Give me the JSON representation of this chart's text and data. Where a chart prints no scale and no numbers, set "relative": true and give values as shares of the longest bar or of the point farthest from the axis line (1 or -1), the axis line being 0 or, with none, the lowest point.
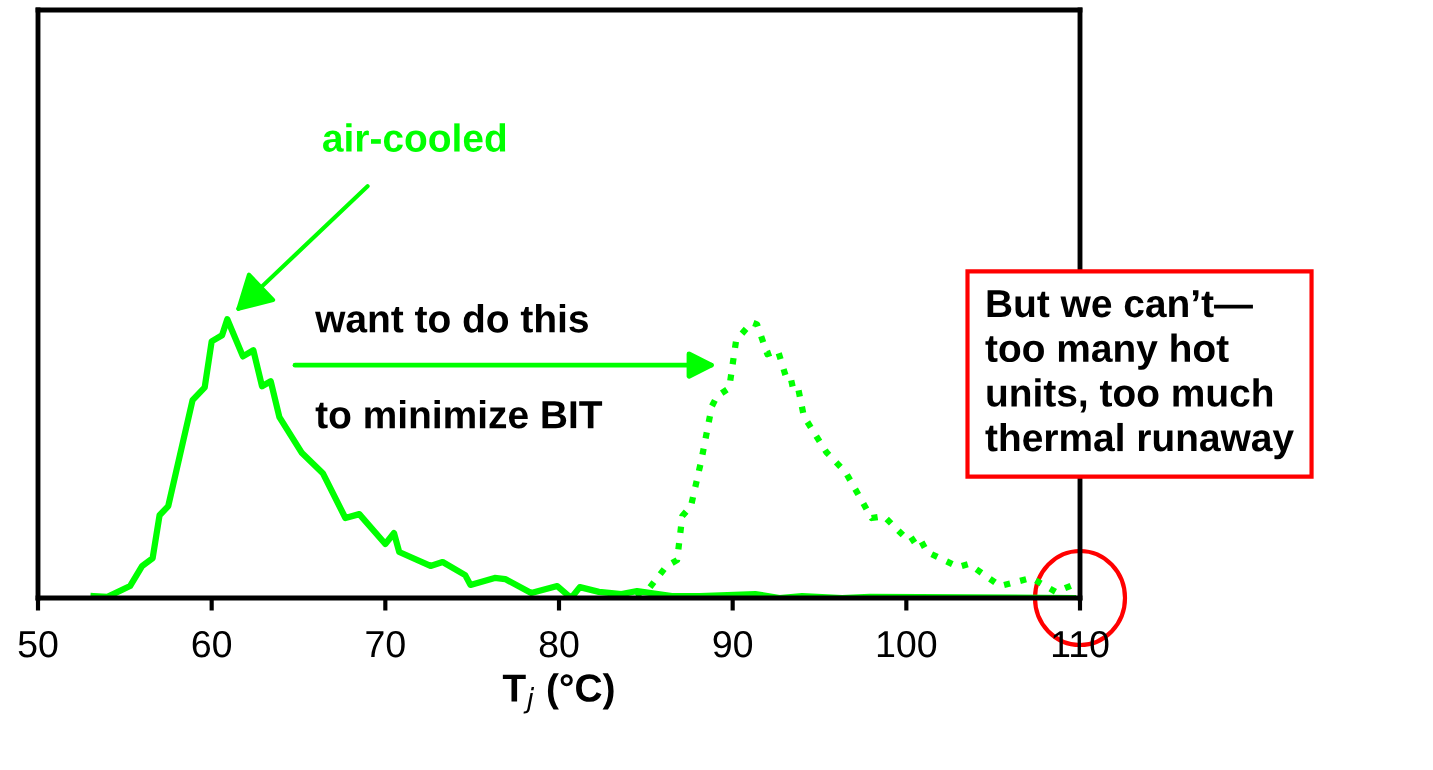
{
  "chart_data": {
    "type": "line",
    "relative": true,
    "xlabel": "T$_{j}$ (°C)",
    "xlim": [
      50,
      110
    ],
    "xticks": [
      50,
      60,
      70,
      80,
      90,
      100,
      110
    ],
    "tick_labels": "x",
    "series": [
      {
        "name": "air-cooled",
        "color": "#00ff00",
        "line_style": "solid",
        "x": [
          53.2,
          54.0,
          55.3,
          56.0,
          56.6,
          57.0,
          57.5,
          58.9,
          59.6,
          60.0,
          60.6,
          60.9,
          61.8,
          62.4,
          62.9,
          63.4,
          63.9,
          65.2,
          66.4,
          67.7,
          68.5,
          70.0,
          70.5,
          70.8,
          72.6,
          73.3,
          74.6,
          74.9,
          76.3,
          76.9,
          78.4,
          79.9,
          80.7,
          81.2,
          82.3,
          83.6,
          84.5,
          86.5,
          88.1,
          91.3,
          92.7,
          94.0,
          96.3,
          97.9,
          109.6
        ],
        "values": [
          0.007,
          0.004,
          0.043,
          0.115,
          0.143,
          0.297,
          0.33,
          0.71,
          0.756,
          0.921,
          0.943,
          1.0,
          0.867,
          0.889,
          0.76,
          0.778,
          0.649,
          0.52,
          0.448,
          0.287,
          0.301,
          0.194,
          0.233,
          0.165,
          0.115,
          0.129,
          0.082,
          0.047,
          0.072,
          0.068,
          0.018,
          0.043,
          0.0,
          0.039,
          0.022,
          0.014,
          0.025,
          0.007,
          0.007,
          0.014,
          0.0,
          0.007,
          0.0,
          0.004,
          0.0
        ]
      },
      {
        "color": "#00ff00",
        "line_style": "dotted",
        "x": [
          83.5,
          84.1,
          85.2,
          86.2,
          86.8,
          87.1,
          87.6,
          88.2,
          88.8,
          89.1,
          89.8,
          90.2,
          91.1,
          91.4,
          92.0,
          92.6,
          93.2,
          93.7,
          94.1,
          95.4,
          96.5,
          98.0,
          98.7,
          100.2,
          100.7,
          101.2,
          103.0,
          103.6,
          105.4,
          107.2,
          108.6,
          109.6
        ],
        "values": [
          0.0,
          0.0,
          0.036,
          0.115,
          0.136,
          0.294,
          0.33,
          0.495,
          0.688,
          0.724,
          0.753,
          0.925,
          0.989,
          0.982,
          0.875,
          0.889,
          0.767,
          0.774,
          0.652,
          0.523,
          0.452,
          0.287,
          0.294,
          0.201,
          0.222,
          0.165,
          0.111,
          0.122,
          0.043,
          0.072,
          0.022,
          0.047
        ]
      }
    ],
    "annotations": [
      "want to do this",
      "to minimize BIT",
      "But we can’t—\ntoo many hot\nunits, too much\nthermal runaway"
    ]
  }
}
